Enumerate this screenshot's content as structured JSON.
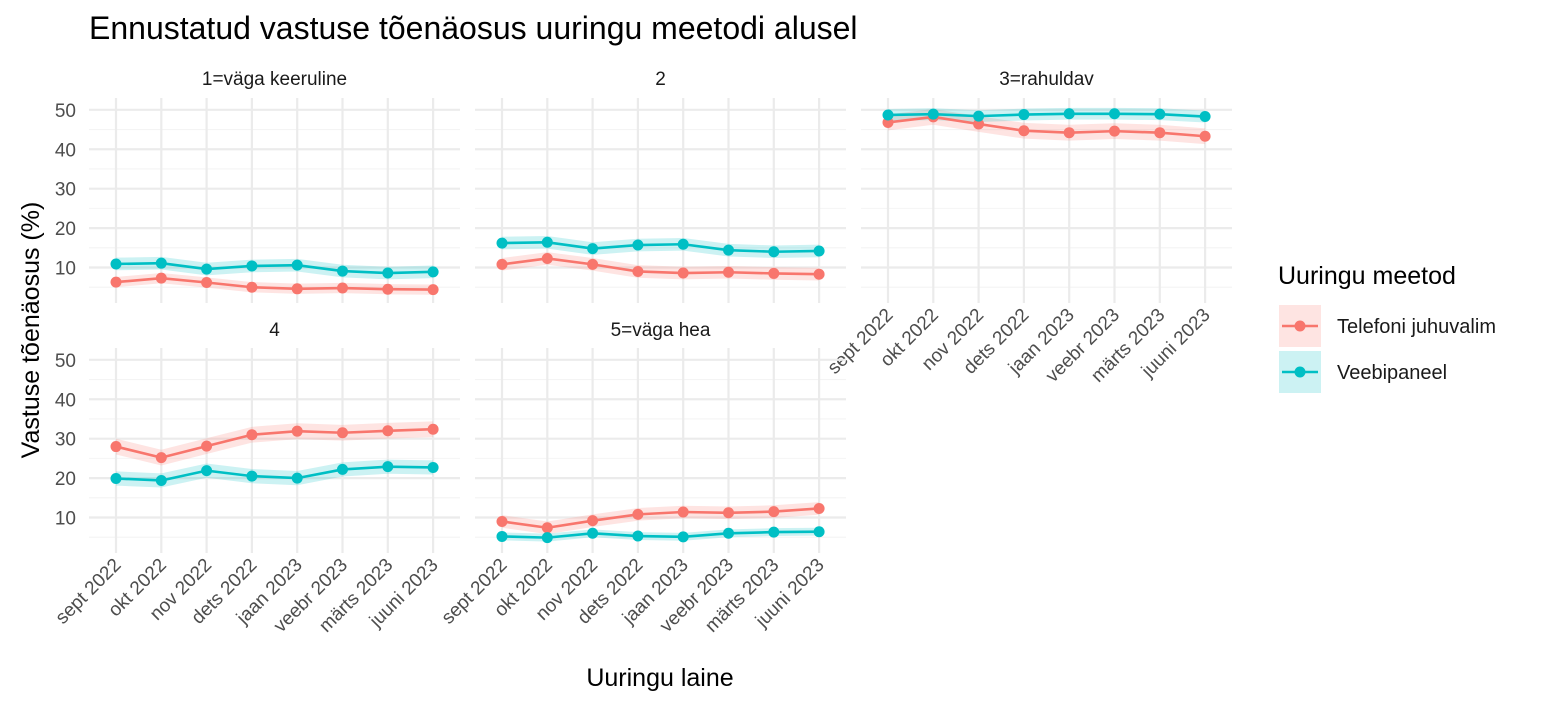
{
  "chart_data": {
    "type": "line",
    "title": "Ennustatud vastuse tõenäosus uuringu meetodi alusel",
    "xlabel": "Uuringu laine",
    "ylabel": "Vastuse tõenäosus (%)",
    "ylim": [
      1,
      53
    ],
    "yticks": [
      "10",
      "20",
      "30",
      "40",
      "50"
    ],
    "categories": [
      "sept  2022",
      "okt  2022",
      "nov  2022",
      "dets 2022",
      "jaan  2023",
      "veebr 2023",
      "märts 2023",
      "juuni 2023"
    ],
    "legend": {
      "title": "Uuringu meetod",
      "entries": [
        {
          "name": "Telefoni juhuvalim",
          "color": "#F8766D"
        },
        {
          "name": "Veebipaneel",
          "color": "#00BFC4"
        }
      ]
    },
    "facets": [
      {
        "label": "1=väga keeruline",
        "series": [
          {
            "name": "Telefoni juhuvalim",
            "values": [
              6.3,
              7.3,
              6.2,
              5.0,
              4.6,
              4.8,
              4.5,
              4.4
            ],
            "ci_half": 1.3
          },
          {
            "name": "Veebipaneel",
            "values": [
              10.9,
              11.1,
              9.6,
              10.4,
              10.6,
              9.1,
              8.6,
              8.9
            ],
            "ci_half": 1.6
          }
        ]
      },
      {
        "label": "2",
        "series": [
          {
            "name": "Telefoni juhuvalim",
            "values": [
              10.8,
              12.3,
              10.8,
              9.0,
              8.6,
              8.8,
              8.5,
              8.3
            ],
            "ci_half": 1.6
          },
          {
            "name": "Veebipaneel",
            "values": [
              16.2,
              16.4,
              14.8,
              15.7,
              15.9,
              14.4,
              14.0,
              14.2
            ],
            "ci_half": 1.6
          }
        ]
      },
      {
        "label": "3=rahuldav",
        "series": [
          {
            "name": "Telefoni juhuvalim",
            "values": [
              46.8,
              48.2,
              46.4,
              44.7,
              44.2,
              44.6,
              44.2,
              43.3
            ],
            "ci_half": 2.0
          },
          {
            "name": "Veebipaneel",
            "values": [
              48.7,
              48.9,
              48.4,
              48.8,
              49.0,
              49.0,
              48.9,
              48.3
            ],
            "ci_half": 1.5
          }
        ]
      },
      {
        "label": "4",
        "series": [
          {
            "name": "Telefoni juhuvalim",
            "values": [
              28.0,
              25.2,
              28.1,
              31.0,
              31.9,
              31.5,
              32.0,
              32.4
            ],
            "ci_half": 2.0
          },
          {
            "name": "Veebipaneel",
            "values": [
              19.9,
              19.4,
              21.9,
              20.5,
              20.0,
              22.2,
              22.9,
              22.7
            ],
            "ci_half": 1.8
          }
        ]
      },
      {
        "label": "5=väga hea",
        "series": [
          {
            "name": "Telefoni juhuvalim",
            "values": [
              9.0,
              7.4,
              9.2,
              10.8,
              11.4,
              11.2,
              11.5,
              12.3
            ],
            "ci_half": 1.6
          },
          {
            "name": "Veebipaneel",
            "values": [
              5.2,
              4.9,
              6.0,
              5.3,
              5.1,
              6.0,
              6.3,
              6.4
            ],
            "ci_half": 1.0
          }
        ]
      }
    ]
  }
}
